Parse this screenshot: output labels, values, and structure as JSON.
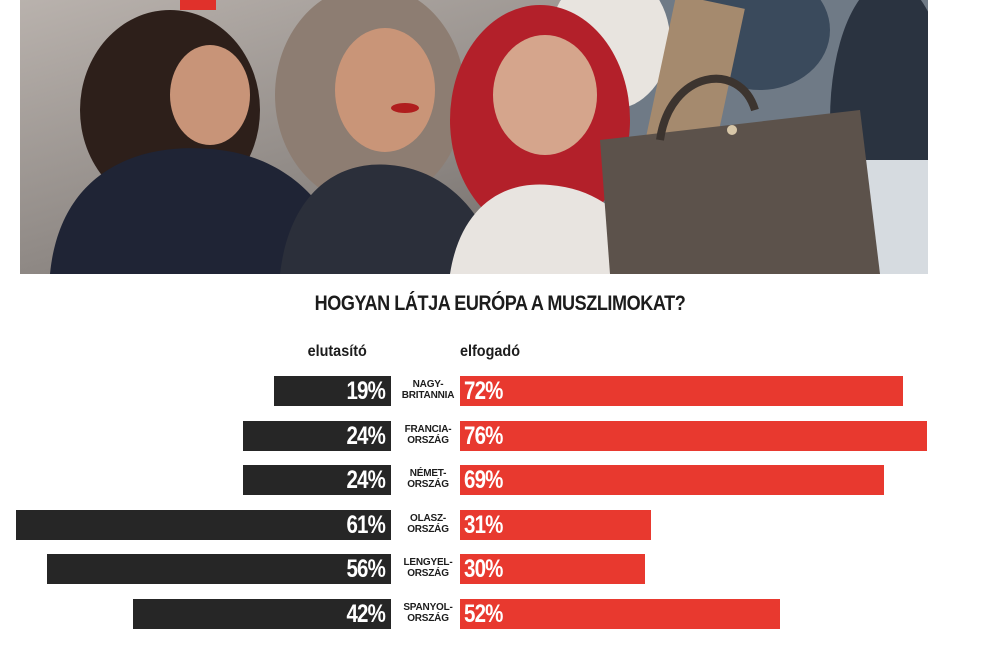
{
  "chart_data": {
    "type": "bar",
    "title": "HOGYAN LÁTJA EURÓPA A MUSZLIMOKAT?",
    "categories": [
      [
        "NAGY-",
        "BRITANNIA"
      ],
      [
        "FRANCIA-",
        "ORSZÁG"
      ],
      [
        "NÉMET-",
        "ORSZÁG"
      ],
      [
        "OLASZ-",
        "ORSZÁG"
      ],
      [
        "LENGYEL-",
        "ORSZÁG"
      ],
      [
        "SPANYOL-",
        "ORSZÁG"
      ]
    ],
    "series": [
      {
        "name": "elutasító",
        "values": [
          19,
          24,
          24,
          61,
          56,
          42
        ],
        "color": "#262626",
        "direction": "left"
      },
      {
        "name": "elfogadó",
        "values": [
          72,
          76,
          69,
          31,
          30,
          52
        ],
        "color": "#e8392f",
        "direction": "right"
      }
    ],
    "unit": "%"
  },
  "photo": {
    "description_icon": "photo-three-women-selfie",
    "accent_color": "#e0312b"
  }
}
